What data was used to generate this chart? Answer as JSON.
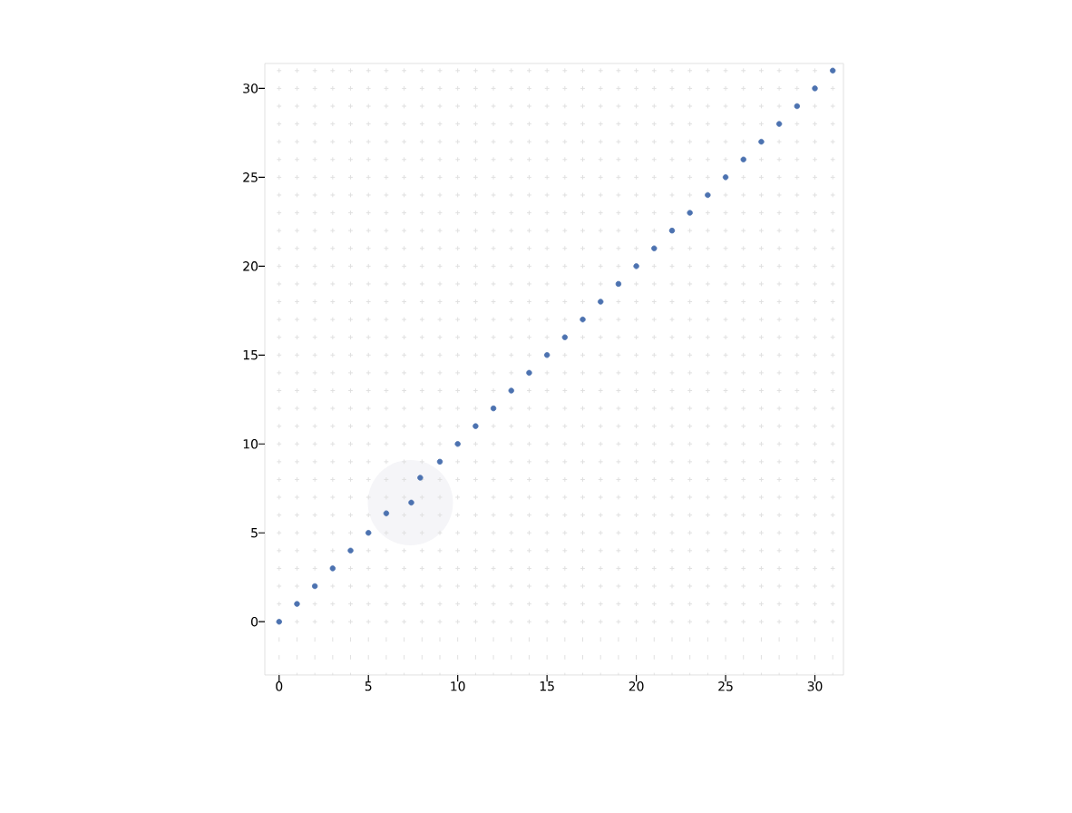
{
  "chart_data": {
    "type": "scatter",
    "x": [
      0,
      1,
      2,
      3,
      4,
      5,
      6,
      7.4,
      7.9,
      9,
      10,
      11,
      12,
      13,
      14,
      15,
      16,
      17,
      18,
      19,
      20,
      21,
      22,
      23,
      24,
      25,
      26,
      27,
      28,
      29,
      30,
      31
    ],
    "values": [
      0,
      1,
      2,
      3,
      4,
      5,
      6.1,
      6.7,
      8.1,
      9,
      10,
      11,
      12,
      13,
      14,
      15,
      16,
      17,
      18,
      19,
      20,
      21,
      22,
      23,
      24,
      25,
      26,
      27,
      28,
      29,
      30,
      31
    ],
    "color": "#4c72b0",
    "grid": true,
    "xlim": [
      -0.8,
      31.6
    ],
    "ylim": [
      -3,
      31.4
    ],
    "xticks": [
      0,
      {
        "value": 1,
        "label": null
      },
      {
        "value": 2,
        "label": null
      },
      {
        "value": 3,
        "label": null
      },
      {
        "value": 4,
        "label": null
      },
      5,
      {
        "value": 6,
        "label": null
      },
      {
        "value": 7,
        "label": null
      },
      {
        "value": 8,
        "label": null
      },
      {
        "value": 9,
        "label": null
      },
      10,
      {
        "value": 11,
        "label": null
      },
      {
        "value": 12,
        "label": null
      },
      {
        "value": 13,
        "label": null
      },
      {
        "value": 14,
        "label": null
      },
      15,
      {
        "value": 16,
        "label": null
      },
      {
        "value": 17,
        "label": null
      },
      {
        "value": 18,
        "label": null
      },
      {
        "value": 19,
        "label": null
      },
      20,
      {
        "value": 21,
        "label": null
      },
      {
        "value": 22,
        "label": null
      },
      {
        "value": 23,
        "label": null
      },
      {
        "value": 24,
        "label": null
      },
      25,
      {
        "value": 26,
        "label": null
      },
      {
        "value": 27,
        "label": null
      },
      {
        "value": 28,
        "label": null
      },
      {
        "value": 29,
        "label": null
      },
      30,
      {
        "value": 31,
        "label": null
      }
    ],
    "yticks": [
      0,
      {
        "value": 1,
        "label": null
      },
      {
        "value": 2,
        "label": null
      },
      {
        "value": 3,
        "label": null
      },
      {
        "value": 4,
        "label": null
      },
      5,
      {
        "value": 6,
        "label": null
      },
      {
        "value": 7,
        "label": null
      },
      {
        "value": 8,
        "label": null
      },
      {
        "value": 9,
        "label": null
      },
      10,
      {
        "value": 11,
        "label": null
      },
      {
        "value": 12,
        "label": null
      },
      {
        "value": 13,
        "label": null
      },
      {
        "value": 14,
        "label": null
      },
      15,
      {
        "value": 16,
        "label": null
      },
      {
        "value": 17,
        "label": null
      },
      {
        "value": 18,
        "label": null
      },
      {
        "value": 19,
        "label": null
      },
      20,
      {
        "value": 21,
        "label": null
      },
      {
        "value": 22,
        "label": null
      },
      {
        "value": 23,
        "label": null
      },
      {
        "value": 24,
        "label": null
      },
      25,
      {
        "value": 26,
        "label": null
      },
      {
        "value": 27,
        "label": null
      },
      {
        "value": 28,
        "label": null
      },
      {
        "value": 29,
        "label": null
      },
      30,
      {
        "value": 31,
        "label": null
      }
    ]
  }
}
